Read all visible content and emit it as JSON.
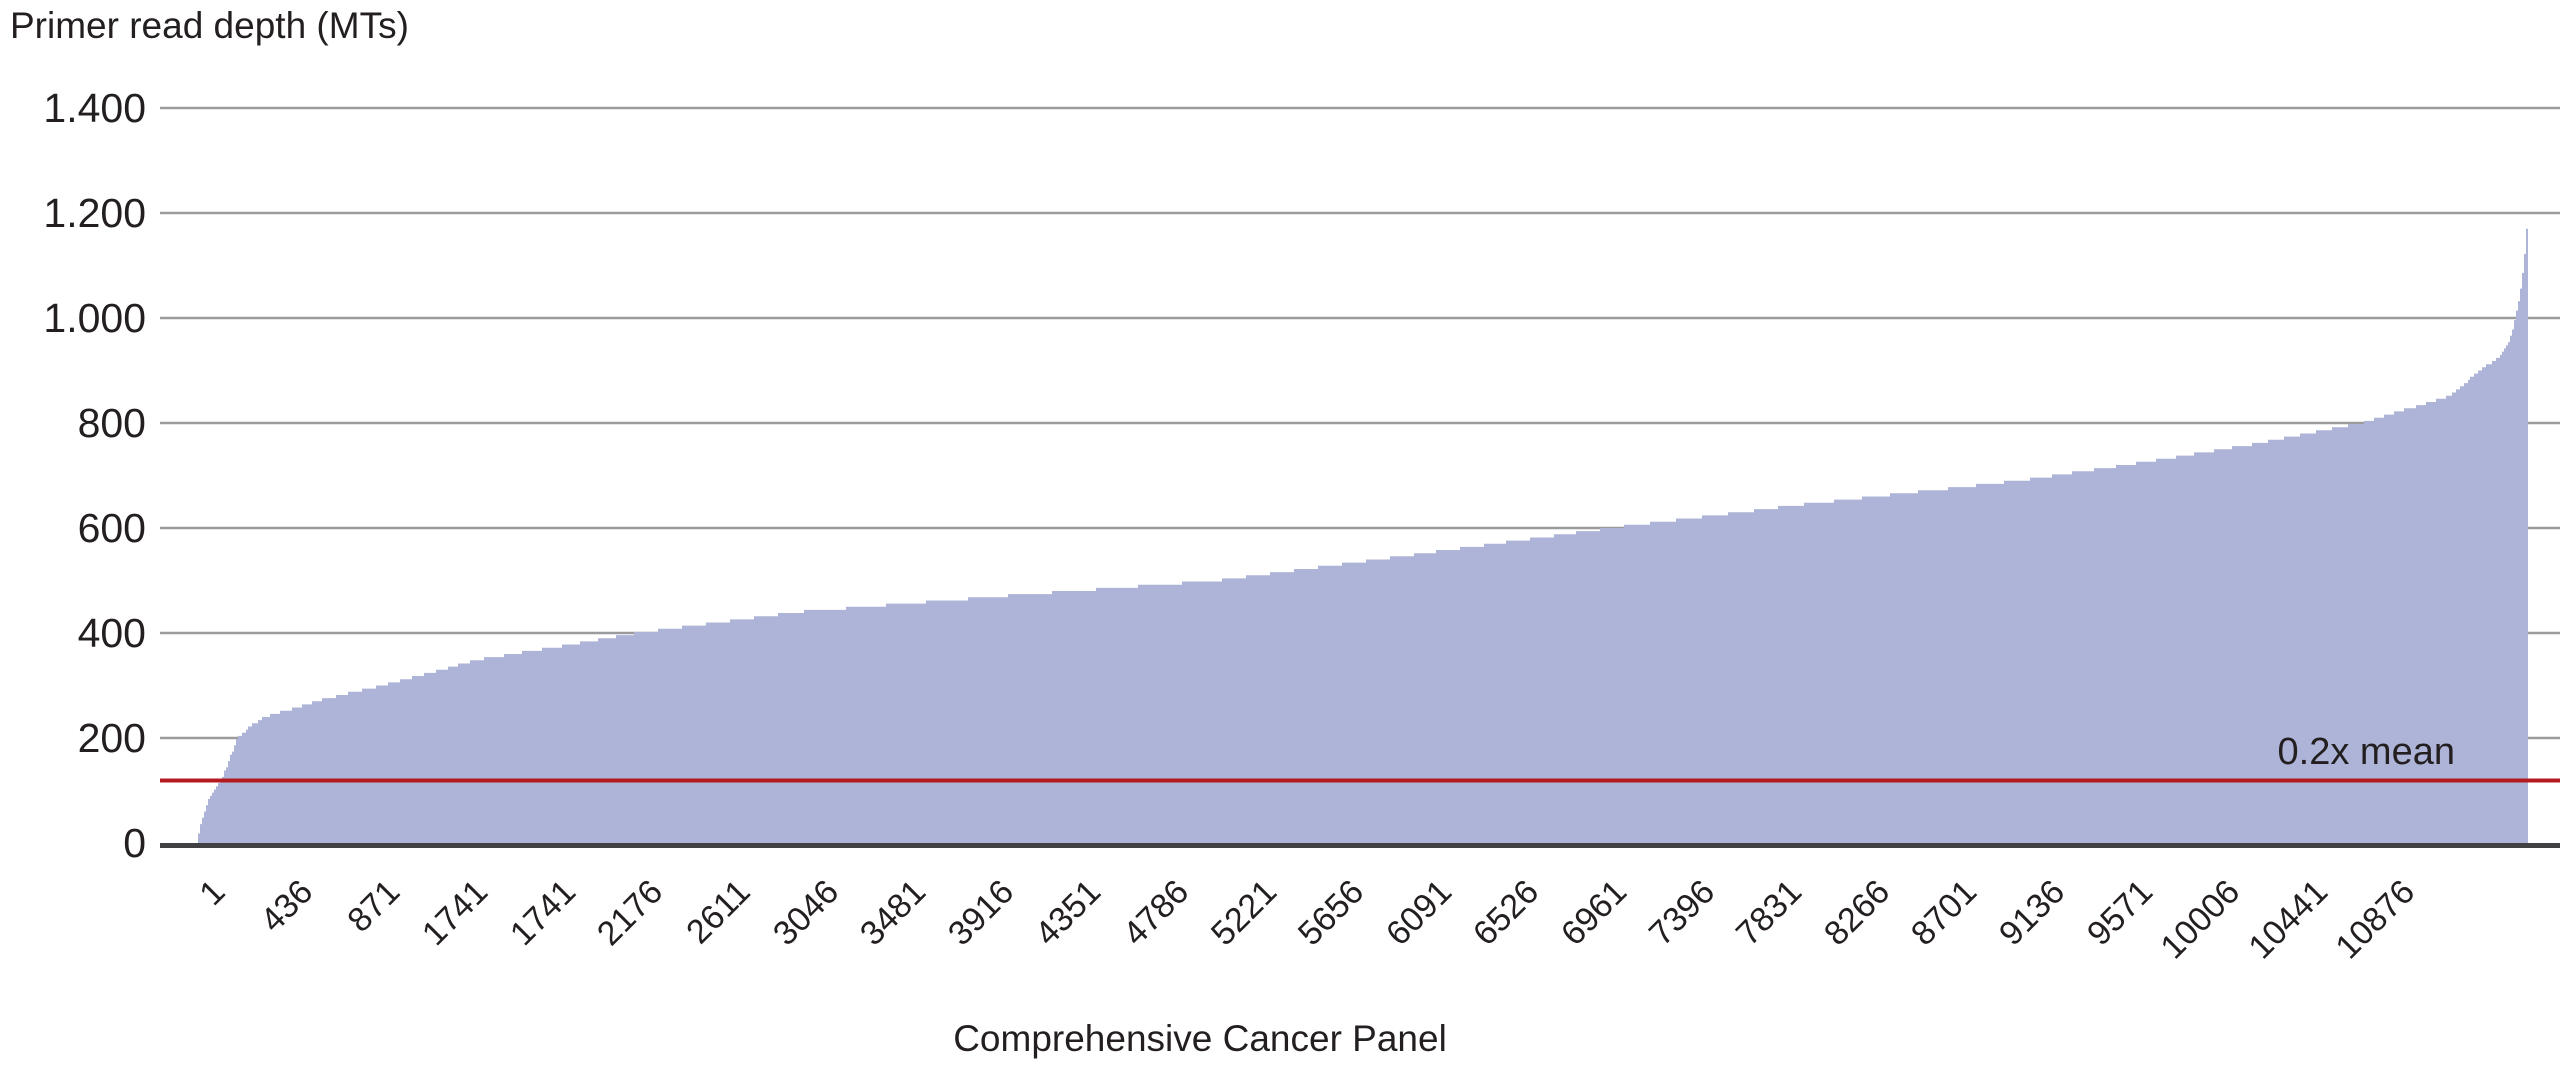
{
  "title": "Primer read depth (MTs)",
  "x_axis": {
    "label": "Comprehensive Cancer Panel",
    "tick_labels": [
      "1",
      "436",
      "871",
      "1741",
      "1741",
      "2176",
      "2611",
      "3046",
      "3481",
      "3916",
      "4351",
      "4786",
      "5221",
      "5656",
      "6091",
      "6526",
      "6961",
      "7396",
      "7831",
      "8266",
      "8701",
      "9136",
      "9571",
      "10006",
      "10441",
      "10876"
    ]
  },
  "y_axis": {
    "tick_labels": [
      "0",
      "200",
      "400",
      "600",
      "800",
      "1.000",
      "1.200",
      "1.400"
    ],
    "tick_values": [
      0,
      200,
      400,
      600,
      800,
      1000,
      1200,
      1400
    ]
  },
  "reference_line": {
    "label": "0.2x mean",
    "value": 120
  },
  "chart_data": {
    "type": "bar",
    "title": "Primer read depth (MTs)",
    "xlabel": "Comprehensive Cancer Panel",
    "ylabel": "Primer read depth (MTs)",
    "ylim": [
      0,
      1400
    ],
    "y_ticks": [
      0,
      200,
      400,
      600,
      800,
      1000,
      1200,
      1400
    ],
    "y_tick_labels": [
      "0",
      "200",
      "400",
      "600",
      "800",
      "1.000",
      "1.200",
      "1.400"
    ],
    "x_tick_labels": [
      "1",
      "436",
      "871",
      "1741",
      "1741",
      "2176",
      "2611",
      "3046",
      "3481",
      "3916",
      "4351",
      "4786",
      "5221",
      "5656",
      "6091",
      "6526",
      "6961",
      "7396",
      "7831",
      "8266",
      "8701",
      "9136",
      "9571",
      "10006",
      "10441",
      "10876"
    ],
    "grid": "horizontal",
    "legend": "none",
    "n_primers": 10876,
    "sort_order": "ascending read depth",
    "reference_line": {
      "label": "0.2x mean",
      "value": 120
    },
    "series": [
      {
        "name": "Primer read depth (MTs)",
        "anchors_index_depth": [
          [
            1,
            5
          ],
          [
            10,
            25
          ],
          [
            25,
            50
          ],
          [
            45,
            75
          ],
          [
            65,
            92
          ],
          [
            95,
            112
          ],
          [
            115,
            122
          ],
          [
            140,
            150
          ],
          [
            187,
            200
          ],
          [
            245,
            222
          ],
          [
            315,
            240
          ],
          [
            420,
            253
          ],
          [
            570,
            272
          ],
          [
            860,
            300
          ],
          [
            1320,
            350
          ],
          [
            1700,
            375
          ],
          [
            2050,
            400
          ],
          [
            2800,
            440
          ],
          [
            3750,
            470
          ],
          [
            4760,
            500
          ],
          [
            5600,
            545
          ],
          [
            6600,
            600
          ],
          [
            7500,
            645
          ],
          [
            8500,
            690
          ],
          [
            9100,
            726
          ],
          [
            9600,
            760
          ],
          [
            10100,
            800
          ],
          [
            10510,
            851
          ],
          [
            10650,
            899
          ],
          [
            10740,
            926
          ],
          [
            10790,
            956
          ],
          [
            10820,
            1000
          ],
          [
            10845,
            1060
          ],
          [
            10860,
            1110
          ],
          [
            10876,
            1195
          ]
        ]
      }
    ],
    "colors": {
      "bar": "#adb4d7",
      "grid": "#9b9a9d",
      "axis": "#414042",
      "reference": "#b4191f",
      "text": "#231f20"
    }
  }
}
